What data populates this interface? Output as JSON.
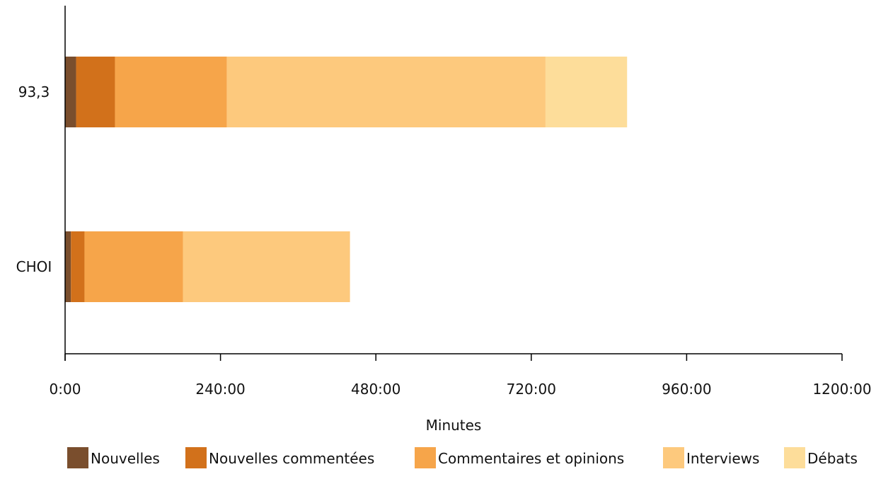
{
  "chart_data": {
    "type": "bar",
    "orientation": "horizontal",
    "stacked": true,
    "categories": [
      "93,3",
      "CHOI"
    ],
    "series": [
      {
        "name": "Nouvelles",
        "color": "#7a4e2d",
        "values": [
          17,
          9
        ]
      },
      {
        "name": "Nouvelles commentées",
        "color": "#d2711b",
        "values": [
          60,
          21
        ]
      },
      {
        "name": "Commentaires et opinions",
        "color": "#f6a54a",
        "values": [
          173,
          152
        ]
      },
      {
        "name": "Interviews",
        "color": "#fdc97d",
        "values": [
          492,
          258
        ]
      },
      {
        "name": "Débats",
        "color": "#fddd9a",
        "values": [
          126,
          0
        ]
      }
    ],
    "xlabel": "Minutes",
    "ylabel": "",
    "xlim": [
      0,
      1200
    ],
    "xticks": [
      0,
      240,
      480,
      720,
      960,
      1200
    ],
    "xtick_labels": [
      "0:00",
      "240:00",
      "480:00",
      "720:00",
      "960:00",
      "1200:00"
    ],
    "grid": false,
    "legend": "bottom"
  }
}
